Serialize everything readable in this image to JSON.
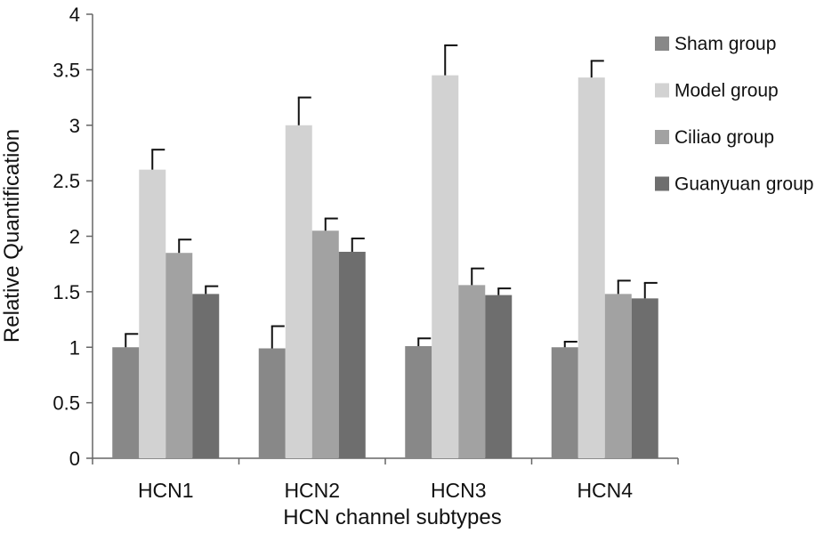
{
  "chart_data": {
    "type": "bar",
    "title": "",
    "xlabel": "HCN channel subtypes",
    "ylabel": "Relative Quantification",
    "categories": [
      "HCN1",
      "HCN2",
      "HCN3",
      "HCN4"
    ],
    "ylim": [
      0,
      4
    ],
    "yticks": [
      0,
      0.5,
      1,
      1.5,
      2,
      2.5,
      3,
      3.5,
      4
    ],
    "ytick_labels": [
      "0",
      "0.5",
      "1",
      "1.5",
      "2",
      "2.5",
      "3",
      "3.5",
      "4"
    ],
    "grid": false,
    "legend_position": "right",
    "error_bars": "upper",
    "series": [
      {
        "name": "Sham group",
        "color": "#888888",
        "values": [
          1.0,
          0.99,
          1.01,
          1.0
        ],
        "errors": [
          0.12,
          0.2,
          0.07,
          0.05
        ]
      },
      {
        "name": "Model group",
        "color": "#d2d2d2",
        "values": [
          2.6,
          3.0,
          3.45,
          3.43
        ],
        "errors": [
          0.18,
          0.25,
          0.27,
          0.15
        ]
      },
      {
        "name": "Ciliao group",
        "color": "#a2a2a2",
        "values": [
          1.85,
          2.05,
          1.56,
          1.48
        ],
        "errors": [
          0.12,
          0.11,
          0.15,
          0.12
        ]
      },
      {
        "name": "Guanyuan group",
        "color": "#6e6e6e",
        "values": [
          1.48,
          1.86,
          1.47,
          1.44
        ],
        "errors": [
          0.07,
          0.12,
          0.06,
          0.14
        ]
      }
    ]
  }
}
